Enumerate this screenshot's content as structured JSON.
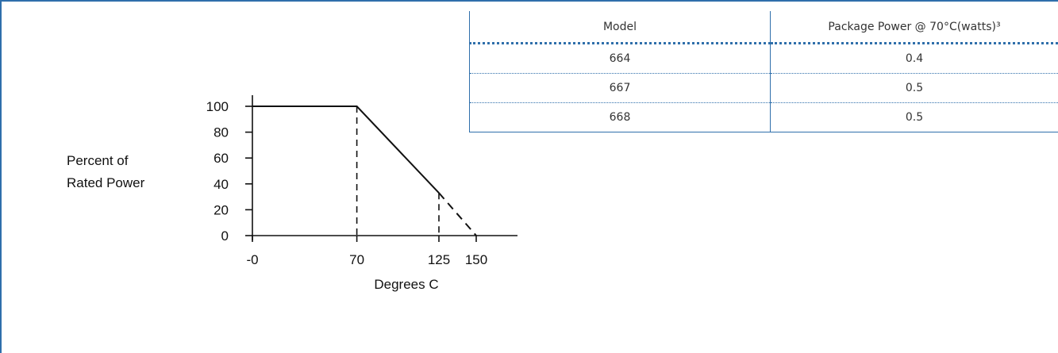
{
  "chart_data": {
    "type": "line",
    "title": "",
    "xlabel": "Degrees C",
    "ylabel": "Percent of Rated Power",
    "ylabel_lines": [
      "Percent of",
      "Rated Power"
    ],
    "x_ticks": [
      "-0",
      "70",
      "125",
      "150"
    ],
    "x_tick_values": [
      0,
      70,
      125,
      150
    ],
    "y_ticks": [
      "0",
      "20",
      "40",
      "60",
      "80",
      "100"
    ],
    "y_tick_values": [
      0,
      20,
      40,
      60,
      80,
      100
    ],
    "xlim": [
      0,
      170
    ],
    "ylim": [
      0,
      100
    ],
    "grid": false,
    "series": [
      {
        "style": "solid",
        "x": [
          0,
          70,
          125
        ],
        "y": [
          100,
          100,
          33
        ]
      },
      {
        "style": "dashed",
        "x": [
          125,
          150
        ],
        "y": [
          33,
          0
        ]
      }
    ],
    "reference_lines": [
      {
        "style": "dashed",
        "x": 70,
        "y_from": 0,
        "y_to": 100
      },
      {
        "style": "dashed",
        "x": 125,
        "y_from": 0,
        "y_to": 33
      }
    ]
  },
  "table": {
    "headers": {
      "model": "Model",
      "power": "Package Power @ 70°C(watts)³"
    },
    "rows": [
      {
        "model": "664",
        "power": "0.4"
      },
      {
        "model": "667",
        "power": "0.5"
      },
      {
        "model": "668",
        "power": "0.5"
      }
    ]
  },
  "colors": {
    "frame": "#2f6fab",
    "divider": "#2f6fab",
    "ink": "#111111"
  }
}
